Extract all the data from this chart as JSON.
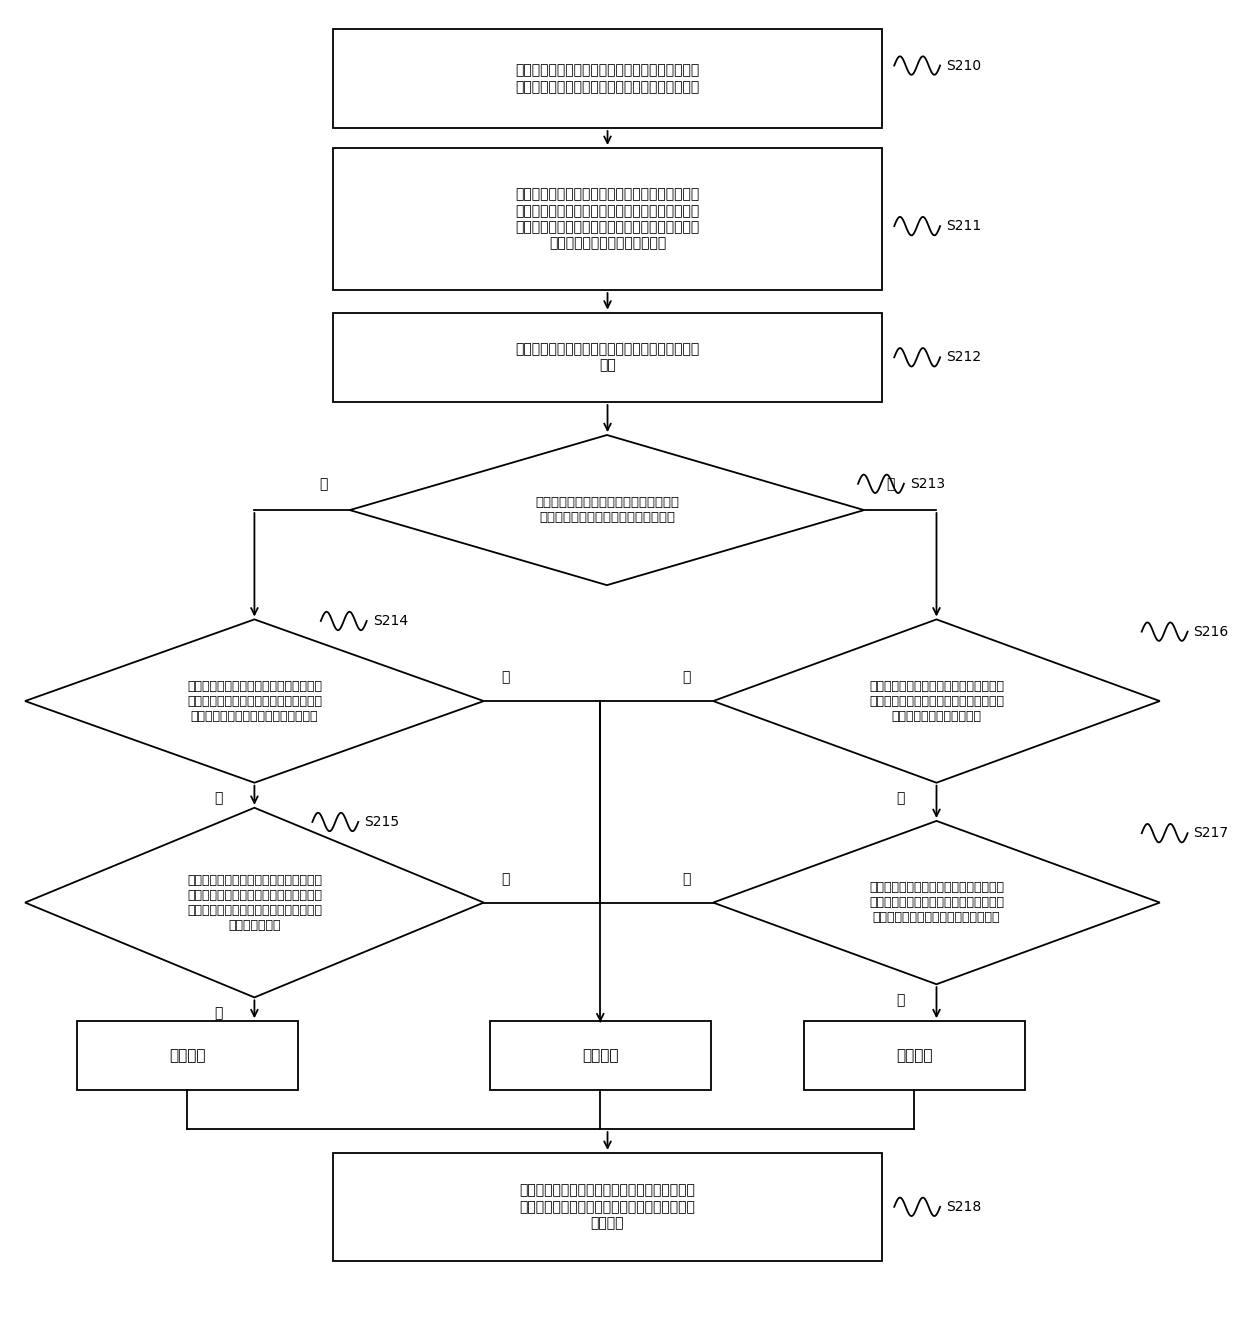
{
  "bg_color": "#ffffff",
  "line_color": "#000000",
  "text_color": "#000000",
  "box_fill": "#ffffff",
  "lw": 1.3,
  "S210_text": "选取各所述逆变器日发电量最大组串的二阶差分的\n绝对值均小于预设日发电量阈值的日期作为典型日",
  "S211_text": "获取各逆变器在所述典型日的每个组串的电流数据\n并根据所述电流数据确定发电量最大组串的电流数\n据，并根据所述发电量最大组串的电流数据得到各\n所述逆变器的组串电流日离散率",
  "S212_text": "基于所述组串电流日离散率确定所述基准组串电流\n曲线",
  "S213_text": "判断基准组串电流曲线对应的电流峰值时\n刻小于所述待筛选组串的电流峰值时刻",
  "S214_text": "判断基准组串电流曲线对应的电流峰值时\n刻之前每个时刻的电流值均大于待筛选组\n串与每个时刻一一对应的时刻的电流值",
  "S215_text": "判断待筛选组串的电流峰值时刻之前基准\n组串电流曲线对应的每个时刻的电流值均\n小于待筛选组串与所述每个时刻一一对应\n的时刻的电流值",
  "S216_text": "判断待筛选组串的电流峰值时刻之前每个\n时刻的电流值均小于待筛选组串与每个时\n刻一一对应的时刻的电流值",
  "S217_text": "判断基准组串电流曲线对应的电流峰值时\n刻之前每个时刻的电流值均大于待筛选组\n串与每个时刻一一对应的时刻的电流值",
  "west_text": "偏西组串",
  "normal_text": "正常组串",
  "east_text": "偏东组串",
  "S218_text": "根据所述待筛选组串的组串类型对应的逆变器的\n组串接入方式确定对所述逆变器的组串接入方式\n进行调整",
  "yes_text": "是",
  "no_text": "否",
  "labels": [
    "S210",
    "S211",
    "S212",
    "S213",
    "S214",
    "S215",
    "S216",
    "S217",
    "S218"
  ]
}
